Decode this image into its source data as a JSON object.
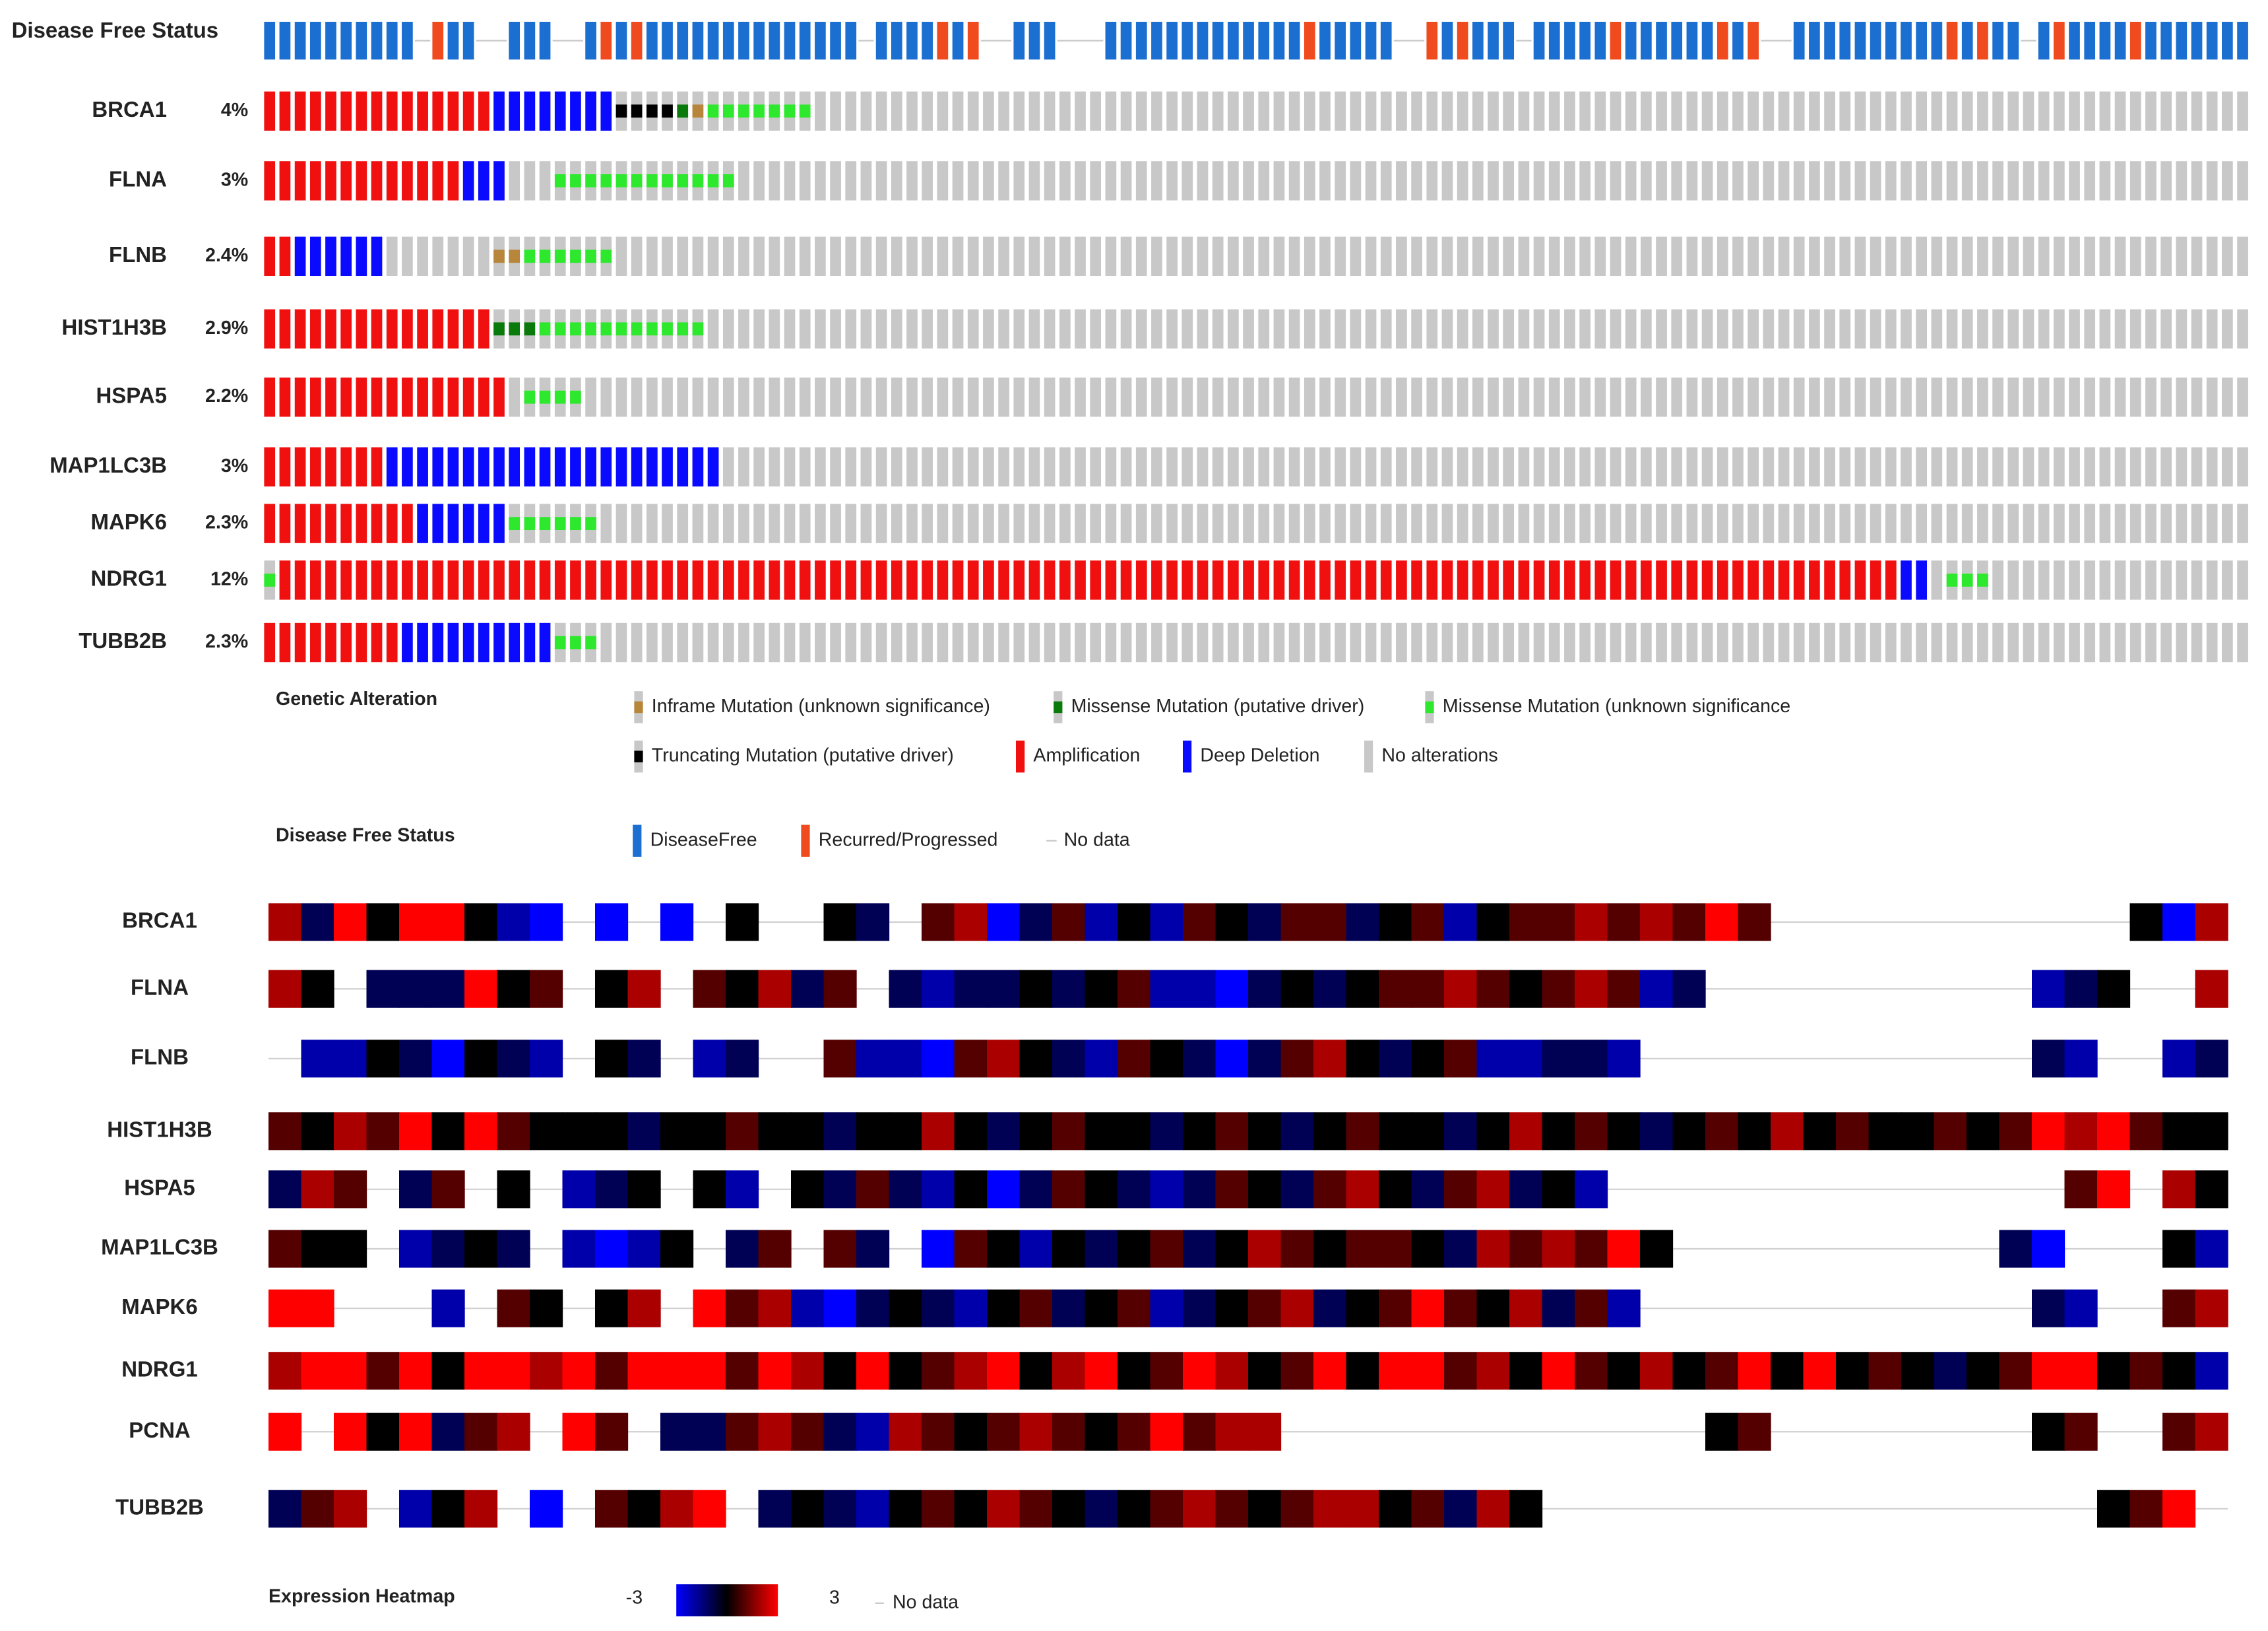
{
  "oncoprint": {
    "status_track": {
      "label": "Disease Free Status",
      "segments": [
        [
          "DiseaseFree",
          10
        ],
        [
          "No data",
          1
        ],
        [
          "Recurred/Progressed",
          1
        ],
        [
          "DiseaseFree",
          2
        ],
        [
          "No data",
          2
        ],
        [
          "DiseaseFree",
          3
        ],
        [
          "No data",
          2
        ],
        [
          "DiseaseFree",
          1
        ],
        [
          "Recurred/Progressed",
          1
        ],
        [
          "DiseaseFree",
          1
        ],
        [
          "Recurred/Progressed",
          1
        ],
        [
          "DiseaseFree",
          14
        ],
        [
          "No data",
          1
        ],
        [
          "DiseaseFree",
          4
        ],
        [
          "Recurred/Progressed",
          1
        ],
        [
          "DiseaseFree",
          1
        ],
        [
          "Recurred/Progressed",
          1
        ],
        [
          "No data",
          2
        ],
        [
          "DiseaseFree",
          3
        ],
        [
          "No data",
          3
        ],
        [
          "DiseaseFree",
          13
        ],
        [
          "Recurred/Progressed",
          1
        ],
        [
          "DiseaseFree",
          5
        ],
        [
          "No data",
          2
        ],
        [
          "Recurred/Progressed",
          1
        ],
        [
          "DiseaseFree",
          1
        ],
        [
          "Recurred/Progressed",
          1
        ],
        [
          "DiseaseFree",
          3
        ],
        [
          "No data",
          1
        ],
        [
          "DiseaseFree",
          5
        ],
        [
          "Recurred/Progressed",
          1
        ],
        [
          "DiseaseFree",
          6
        ],
        [
          "Recurred/Progressed",
          1
        ],
        [
          "DiseaseFree",
          1
        ],
        [
          "Recurred/Progressed",
          1
        ],
        [
          "No data",
          2
        ],
        [
          "DiseaseFree",
          10
        ],
        [
          "Recurred/Progressed",
          1
        ],
        [
          "DiseaseFree",
          1
        ],
        [
          "Recurred/Progressed",
          1
        ],
        [
          "DiseaseFree",
          2
        ],
        [
          "No data",
          1
        ],
        [
          "DiseaseFree",
          1
        ],
        [
          "Recurred/Progressed",
          1
        ],
        [
          "DiseaseFree",
          4
        ],
        [
          "Recurred/Progressed",
          1
        ],
        [
          "DiseaseFree",
          7
        ]
      ]
    },
    "rows": [
      {
        "gene": "BRCA1",
        "pct": "4%",
        "segments": [
          [
            "Amplification",
            15
          ],
          [
            "Deep Deletion",
            8
          ],
          [
            "Truncating Mutation (putative driver)",
            4
          ],
          [
            "Missense Mutation (putative driver)",
            1
          ],
          [
            "Inframe Mutation (unknown significance)",
            1
          ],
          [
            "Missense Mutation (unknown significance",
            7
          ],
          [
            "No alterations",
            94
          ]
        ]
      },
      {
        "gene": "FLNA",
        "pct": "3%",
        "segments": [
          [
            "Amplification",
            13
          ],
          [
            "Deep Deletion",
            3
          ],
          [
            "No alterations",
            3
          ],
          [
            "Missense Mutation (unknown significance",
            12
          ],
          [
            "No alterations",
            99
          ]
        ]
      },
      {
        "gene": "FLNB",
        "pct": "2.4%",
        "segments": [
          [
            "Amplification",
            2
          ],
          [
            "Deep Deletion",
            6
          ],
          [
            "No alterations",
            7
          ],
          [
            "Inframe Mutation (unknown significance)",
            2
          ],
          [
            "Missense Mutation (unknown significance",
            6
          ],
          [
            "No alterations",
            107
          ]
        ]
      },
      {
        "gene": "HIST1H3B",
        "pct": "2.9%",
        "segments": [
          [
            "Amplification",
            15
          ],
          [
            "Missense Mutation (putative driver)",
            3
          ],
          [
            "Missense Mutation (unknown significance",
            11
          ],
          [
            "No alterations",
            101
          ]
        ]
      },
      {
        "gene": "HSPA5",
        "pct": "2.2%",
        "segments": [
          [
            "Amplification",
            16
          ],
          [
            "No alterations",
            1
          ],
          [
            "Missense Mutation (unknown significance",
            4
          ],
          [
            "No alterations",
            109
          ]
        ]
      },
      {
        "gene": "MAP1LC3B",
        "pct": "3%",
        "segments": [
          [
            "Amplification",
            8
          ],
          [
            "Deep Deletion",
            22
          ],
          [
            "No alterations",
            100
          ]
        ]
      },
      {
        "gene": "MAPK6",
        "pct": "2.3%",
        "segments": [
          [
            "Amplification",
            10
          ],
          [
            "Deep Deletion",
            6
          ],
          [
            "Missense Mutation (unknown significance",
            6
          ],
          [
            "No alterations",
            108
          ]
        ]
      },
      {
        "gene": "NDRG1",
        "pct": "12%",
        "segments": [
          [
            "Missense Mutation (unknown significance",
            1
          ],
          [
            "Amplification",
            106
          ],
          [
            "Deep Deletion",
            2
          ],
          [
            "No alterations",
            1
          ],
          [
            "Missense Mutation (unknown significance",
            3
          ],
          [
            "No alterations",
            17
          ]
        ]
      },
      {
        "gene": "TUBB2B",
        "pct": "2.3%",
        "segments": [
          [
            "Amplification",
            9
          ],
          [
            "Deep Deletion",
            10
          ],
          [
            "Missense Mutation (unknown significance",
            3
          ],
          [
            "No alterations",
            108
          ]
        ]
      }
    ],
    "alteration_legend": {
      "title": "Genetic Alteration",
      "items": [
        {
          "label": "Inframe Mutation (unknown significance)",
          "color": "#b8863b",
          "style": "small"
        },
        {
          "label": "Missense Mutation (putative driver)",
          "color": "#0a7a0a",
          "style": "small"
        },
        {
          "label": "Missense Mutation (unknown significance",
          "color": "#2ee82e",
          "style": "small"
        },
        {
          "label": "Truncating Mutation (putative driver)",
          "color": "#000000",
          "style": "small"
        },
        {
          "label": "Amplification",
          "color": "#f01010",
          "style": "full"
        },
        {
          "label": "Deep Deletion",
          "color": "#0a0aff",
          "style": "full"
        },
        {
          "label": "No alterations",
          "color": "#c8c8c8",
          "style": "full"
        }
      ]
    },
    "status_legend": {
      "title": "Disease Free Status",
      "items": [
        {
          "label": "DiseaseFree",
          "color": "#1a6fd0",
          "style": "full"
        },
        {
          "label": "Recurred/Progressed",
          "color": "#f04b1f",
          "style": "full"
        },
        {
          "label": "No data",
          "color": "#c8c8c8",
          "style": "dash"
        }
      ]
    }
  },
  "heatmap": {
    "rows": [
      {
        "gene": "BRCA1",
        "values": [
          2,
          -1,
          3,
          0,
          3,
          3,
          0,
          -2,
          -3,
          null,
          -3,
          null,
          -3,
          null,
          0,
          null,
          null,
          0,
          -1,
          null,
          1,
          2,
          -3,
          -1,
          1,
          -2,
          0,
          -2,
          1,
          0,
          -1,
          1,
          1,
          -1,
          0,
          1,
          -2,
          0,
          1,
          1,
          2,
          1,
          2,
          1,
          3,
          1,
          null,
          null,
          null,
          null,
          null,
          null,
          null,
          null,
          null,
          null,
          null,
          0,
          -3,
          2
        ]
      },
      {
        "gene": "FLNA",
        "values": [
          2,
          0,
          null,
          -1,
          -1,
          -1,
          3,
          0,
          1,
          null,
          0,
          2,
          null,
          1,
          0,
          2,
          -1,
          1,
          null,
          -1,
          -2,
          -1,
          -1,
          0,
          -1,
          0,
          1,
          -2,
          -2,
          -3,
          -1,
          0,
          -1,
          0,
          1,
          1,
          2,
          1,
          0,
          1,
          2,
          1,
          -2,
          -1,
          null,
          null,
          null,
          null,
          null,
          null,
          null,
          null,
          null,
          null,
          -2,
          -1,
          0,
          null,
          null,
          2
        ]
      },
      {
        "gene": "FLNB",
        "values": [
          null,
          -2,
          -2,
          0,
          -1,
          -3,
          0,
          -1,
          -2,
          null,
          0,
          -1,
          null,
          -2,
          -1,
          null,
          null,
          1,
          -2,
          -2,
          -3,
          1,
          2,
          0,
          -1,
          -2,
          1,
          0,
          -1,
          -3,
          -1,
          1,
          2,
          0,
          -1,
          0,
          1,
          -2,
          -2,
          -1,
          -1,
          -2,
          null,
          null,
          null,
          null,
          null,
          null,
          null,
          null,
          null,
          null,
          null,
          null,
          -1,
          -2,
          null,
          null,
          -2,
          -1
        ]
      },
      {
        "gene": "HIST1H3B",
        "values": [
          1,
          0,
          2,
          1,
          3,
          0,
          3,
          1,
          0,
          0,
          0,
          -1,
          0,
          0,
          1,
          0,
          0,
          -1,
          0,
          0,
          2,
          0,
          -1,
          0,
          1,
          0,
          0,
          -1,
          0,
          1,
          0,
          -1,
          0,
          1,
          0,
          0,
          -1,
          0,
          2,
          0,
          1,
          0,
          -1,
          0,
          1,
          0,
          2,
          0,
          1,
          0,
          0,
          1,
          0,
          1,
          3,
          2,
          3,
          1,
          0,
          0
        ]
      },
      {
        "gene": "HSPA5",
        "values": [
          -1,
          2,
          1,
          null,
          -1,
          1,
          null,
          0,
          null,
          -2,
          -1,
          0,
          null,
          0,
          -2,
          null,
          0,
          -1,
          1,
          -1,
          -2,
          0,
          -3,
          -1,
          1,
          0,
          -1,
          -2,
          -1,
          1,
          0,
          -1,
          1,
          2,
          0,
          -1,
          1,
          2,
          -1,
          0,
          -2,
          null,
          null,
          null,
          null,
          null,
          null,
          null,
          null,
          null,
          null,
          null,
          null,
          null,
          null,
          1,
          3,
          null,
          2,
          0
        ]
      },
      {
        "gene": "MAP1LC3B",
        "values": [
          1,
          0,
          0,
          null,
          -2,
          -1,
          0,
          -1,
          null,
          -2,
          -3,
          -2,
          0,
          null,
          -1,
          1,
          null,
          1,
          -1,
          null,
          -3,
          1,
          0,
          -2,
          0,
          -1,
          0,
          1,
          -1,
          0,
          2,
          1,
          0,
          1,
          1,
          0,
          -1,
          2,
          1,
          2,
          1,
          3,
          0,
          null,
          null,
          null,
          null,
          null,
          null,
          null,
          null,
          null,
          null,
          -1,
          -3,
          null,
          null,
          null,
          0,
          -2
        ]
      },
      {
        "gene": "MAPK6",
        "values": [
          3,
          3,
          null,
          null,
          null,
          -2,
          null,
          1,
          0,
          null,
          0,
          2,
          null,
          3,
          1,
          2,
          -2,
          -3,
          -1,
          0,
          -1,
          -2,
          0,
          1,
          -1,
          0,
          1,
          -2,
          -1,
          0,
          1,
          2,
          -1,
          0,
          1,
          3,
          1,
          0,
          2,
          -1,
          1,
          -2,
          null,
          null,
          null,
          null,
          null,
          null,
          null,
          null,
          null,
          null,
          null,
          null,
          -1,
          -2,
          null,
          null,
          1,
          2
        ]
      },
      {
        "gene": "NDRG1",
        "values": [
          2,
          3,
          3,
          1,
          3,
          0,
          3,
          3,
          2,
          3,
          1,
          3,
          3,
          3,
          1,
          3,
          2,
          0,
          3,
          0,
          1,
          2,
          3,
          0,
          2,
          3,
          0,
          1,
          3,
          2,
          0,
          1,
          3,
          0,
          3,
          3,
          1,
          2,
          0,
          3,
          1,
          0,
          2,
          0,
          1,
          3,
          0,
          3,
          0,
          1,
          0,
          -1,
          0,
          1,
          3,
          3,
          0,
          1,
          0,
          -2
        ]
      },
      {
        "gene": "PCNA",
        "values": [
          3,
          null,
          3,
          0,
          3,
          -1,
          1,
          2,
          null,
          3,
          1,
          null,
          -1,
          -1,
          1,
          2,
          1,
          -1,
          -2,
          2,
          1,
          0,
          1,
          2,
          1,
          0,
          1,
          3,
          1,
          2,
          2,
          null,
          null,
          null,
          null,
          null,
          null,
          null,
          null,
          null,
          null,
          null,
          null,
          null,
          0,
          1,
          null,
          null,
          null,
          null,
          null,
          null,
          null,
          null,
          0,
          1,
          null,
          null,
          1,
          2
        ]
      },
      {
        "gene": "TUBB2B",
        "values": [
          -1,
          1,
          2,
          null,
          -2,
          0,
          2,
          null,
          -3,
          null,
          1,
          0,
          2,
          3,
          null,
          -1,
          0,
          -1,
          -2,
          0,
          1,
          0,
          2,
          1,
          0,
          -1,
          0,
          1,
          2,
          1,
          0,
          1,
          2,
          2,
          0,
          1,
          -1,
          2,
          0,
          null,
          null,
          null,
          null,
          null,
          null,
          null,
          null,
          null,
          null,
          null,
          null,
          null,
          null,
          null,
          null,
          null,
          0,
          1,
          3,
          null
        ]
      }
    ],
    "legend": {
      "title": "Expression Heatmap",
      "min": -3,
      "max": 3,
      "colors": [
        "#0000ff",
        "#000000",
        "#ff0000"
      ],
      "no_data": "No data"
    }
  }
}
